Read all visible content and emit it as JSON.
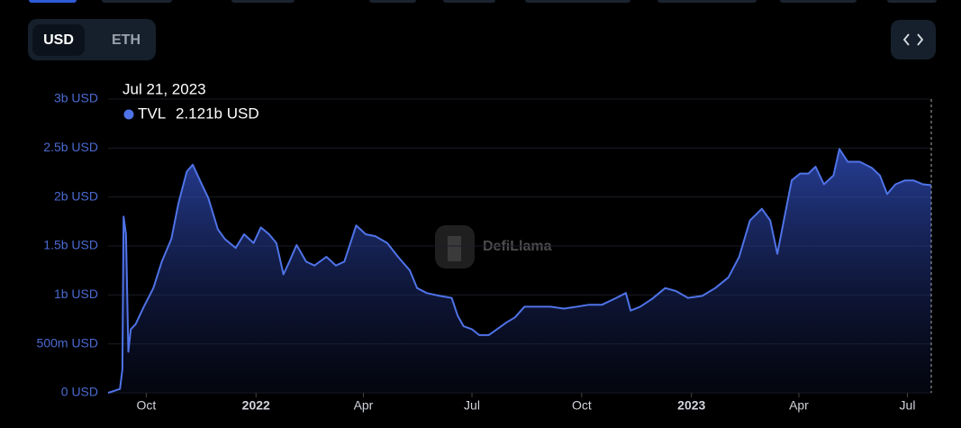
{
  "toggle": {
    "options": [
      "USD",
      "ETH"
    ]
  },
  "watermark": "DefiLlama",
  "chart_data": {
    "type": "area",
    "x": [
      "2021-08-30",
      "2021-09-09",
      "2021-09-11",
      "2021-09-12",
      "2021-09-14",
      "2021-09-16",
      "2021-09-18",
      "2021-09-22",
      "2021-09-29",
      "2021-10-07",
      "2021-10-14",
      "2021-10-22",
      "2021-10-28",
      "2021-11-04",
      "2021-11-09",
      "2021-11-15",
      "2021-11-22",
      "2021-11-30",
      "2021-12-06",
      "2021-12-15",
      "2021-12-22",
      "2021-12-30",
      "2022-01-05",
      "2022-01-12",
      "2022-01-18",
      "2022-01-24",
      "2022-01-29",
      "2022-02-04",
      "2022-02-12",
      "2022-02-19",
      "2022-03-01",
      "2022-03-09",
      "2022-03-16",
      "2022-03-26",
      "2022-04-03",
      "2022-04-11",
      "2022-04-21",
      "2022-04-30",
      "2022-05-10",
      "2022-05-16",
      "2022-05-24",
      "2022-06-04",
      "2022-06-14",
      "2022-06-19",
      "2022-06-24",
      "2022-07-01",
      "2022-07-07",
      "2022-07-15",
      "2022-07-22",
      "2022-07-30",
      "2022-08-06",
      "2022-08-14",
      "2022-08-25",
      "2022-09-05",
      "2022-09-16",
      "2022-09-27",
      "2022-10-07",
      "2022-10-18",
      "2022-10-30",
      "2022-11-07",
      "2022-11-11",
      "2022-11-19",
      "2022-11-29",
      "2022-12-10",
      "2022-12-19",
      "2022-12-29",
      "2023-01-10",
      "2023-01-21",
      "2023-02-01",
      "2023-02-10",
      "2023-02-19",
      "2023-03-01",
      "2023-03-08",
      "2023-03-14",
      "2023-03-20",
      "2023-03-26",
      "2023-04-02",
      "2023-04-09",
      "2023-04-15",
      "2023-04-22",
      "2023-04-30",
      "2023-05-05",
      "2023-05-12",
      "2023-05-22",
      "2023-06-01",
      "2023-06-08",
      "2023-06-14",
      "2023-06-21",
      "2023-06-29",
      "2023-07-06",
      "2023-07-14",
      "2023-07-21"
    ],
    "series": [
      {
        "name": "TVL",
        "color": "#4f73e8",
        "values": [
          0,
          40000000,
          240000000,
          1800000000,
          1620000000,
          420000000,
          650000000,
          700000000,
          880000000,
          1070000000,
          1340000000,
          1570000000,
          1940000000,
          2260000000,
          2330000000,
          2170000000,
          1990000000,
          1670000000,
          1570000000,
          1480000000,
          1620000000,
          1530000000,
          1690000000,
          1620000000,
          1530000000,
          1210000000,
          1340000000,
          1510000000,
          1340000000,
          1300000000,
          1390000000,
          1300000000,
          1340000000,
          1710000000,
          1620000000,
          1600000000,
          1530000000,
          1390000000,
          1250000000,
          1070000000,
          1020000000,
          990000000,
          970000000,
          790000000,
          680000000,
          650000000,
          590000000,
          590000000,
          650000000,
          720000000,
          770000000,
          880000000,
          880000000,
          880000000,
          860000000,
          880000000,
          900000000,
          900000000,
          970000000,
          1020000000,
          840000000,
          880000000,
          960000000,
          1070000000,
          1040000000,
          970000000,
          990000000,
          1070000000,
          1180000000,
          1390000000,
          1760000000,
          1880000000,
          1760000000,
          1420000000,
          1800000000,
          2170000000,
          2240000000,
          2240000000,
          2310000000,
          2130000000,
          2220000000,
          2490000000,
          2360000000,
          2360000000,
          2300000000,
          2220000000,
          2030000000,
          2130000000,
          2170000000,
          2170000000,
          2130000000,
          2121000000
        ]
      }
    ],
    "tooltip": {
      "date": "Jul 21, 2023",
      "value_label": "2.121b USD"
    },
    "xlim": [
      "2021-08-30",
      "2023-07-21"
    ],
    "xticks": [
      {
        "value": "2021-10-01",
        "label": "Oct"
      },
      {
        "value": "2022-01-01",
        "label": "2022"
      },
      {
        "value": "2022-04-01",
        "label": "Apr"
      },
      {
        "value": "2022-07-01",
        "label": "Jul"
      },
      {
        "value": "2022-10-01",
        "label": "Oct"
      },
      {
        "value": "2023-01-01",
        "label": "2023"
      },
      {
        "value": "2023-04-01",
        "label": "Apr"
      },
      {
        "value": "2023-07-01",
        "label": "Jul"
      }
    ],
    "ylim": [
      0,
      3000000000
    ],
    "yticks": [
      {
        "value": 0,
        "label": "0 USD"
      },
      {
        "value": 500000000,
        "label": "500m USD"
      },
      {
        "value": 1000000000,
        "label": "1b USD"
      },
      {
        "value": 1500000000,
        "label": "1.5b USD"
      },
      {
        "value": 2000000000,
        "label": "2b USD"
      },
      {
        "value": 2500000000,
        "label": "2.5b USD"
      },
      {
        "value": 3000000000,
        "label": "3b USD"
      }
    ],
    "grid": true
  }
}
